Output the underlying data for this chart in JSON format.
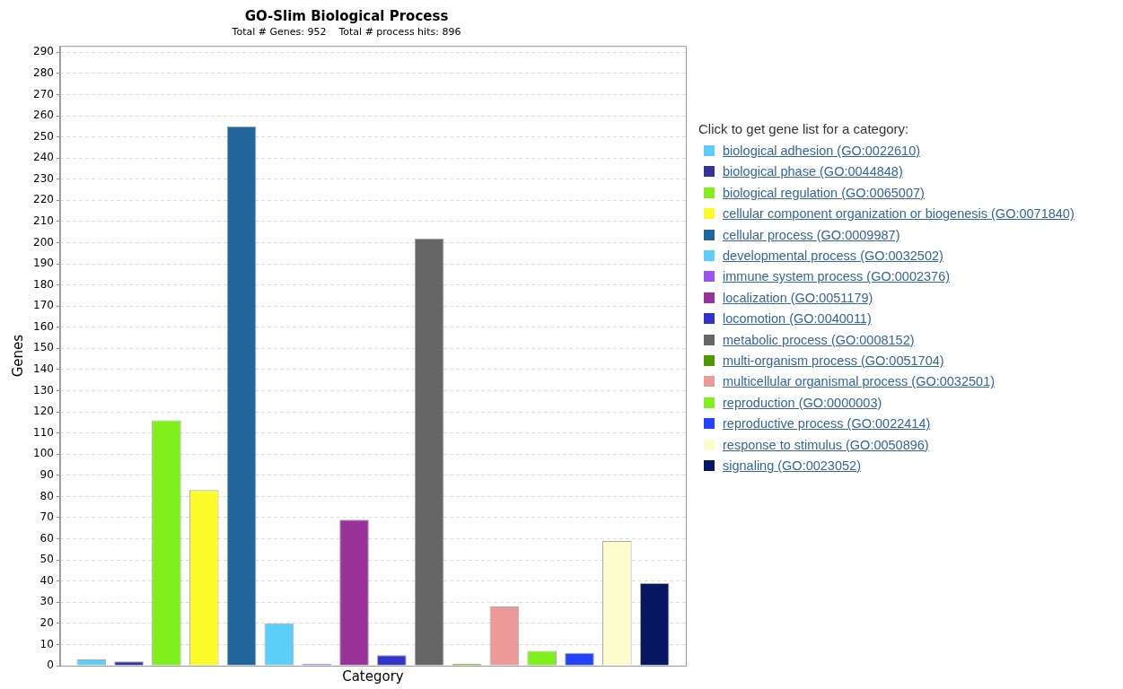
{
  "chart_data": {
    "type": "bar",
    "title": "GO-Slim Biological Process",
    "subtitle": "Total # Genes: 952    Total # process hits: 896",
    "xlabel": "Category",
    "ylabel": "Genes",
    "legend_title": "Click to get gene list for a category:",
    "legend": "right",
    "grid": "y",
    "categories": [
      null
    ],
    "ylim": [
      0,
      293
    ],
    "yticks": [
      0,
      10,
      20,
      30,
      40,
      50,
      60,
      70,
      80,
      90,
      100,
      110,
      120,
      130,
      140,
      150,
      160,
      170,
      180,
      190,
      200,
      210,
      220,
      230,
      240,
      250,
      260,
      270,
      280,
      290
    ],
    "series": [
      {
        "name": "biological adhesion (GO:0022610)",
        "color": "#5bcefa",
        "values": [
          3
        ]
      },
      {
        "name": "biological phase (GO:0044848)",
        "color": "#333399",
        "values": [
          2
        ]
      },
      {
        "name": "biological regulation (GO:0065007)",
        "color": "#80f01c",
        "values": [
          116
        ]
      },
      {
        "name": "cellular component organization or biogenesis (GO:0071840)",
        "color": "#fbfb2c",
        "values": [
          83
        ]
      },
      {
        "name": "cellular process (GO:0009987)",
        "color": "#20669a",
        "values": [
          255
        ]
      },
      {
        "name": "developmental process (GO:0032502)",
        "color": "#5bcefa",
        "values": [
          20
        ]
      },
      {
        "name": "immune system process (GO:0002376)",
        "color": "#9955ee",
        "values": [
          1
        ]
      },
      {
        "name": "localization (GO:0051179)",
        "color": "#993399",
        "values": [
          69
        ]
      },
      {
        "name": "locomotion (GO:0040011)",
        "color": "#3333cc",
        "values": [
          5
        ]
      },
      {
        "name": "metabolic process (GO:0008152)",
        "color": "#666666",
        "values": [
          202
        ]
      },
      {
        "name": "multi-organism process (GO:0051704)",
        "color": "#4d9900",
        "values": [
          1
        ]
      },
      {
        "name": "multicellular organismal process (GO:0032501)",
        "color": "#ee9999",
        "values": [
          28
        ]
      },
      {
        "name": "reproduction (GO:0000003)",
        "color": "#80f01c",
        "values": [
          7
        ]
      },
      {
        "name": "reproductive process (GO:0022414)",
        "color": "#2244ff",
        "values": [
          6
        ]
      },
      {
        "name": "response to stimulus (GO:0050896)",
        "color": "#fbfbcc",
        "values": [
          59
        ]
      },
      {
        "name": "signaling (GO:0023052)",
        "color": "#061660",
        "values": [
          39
        ]
      }
    ]
  }
}
